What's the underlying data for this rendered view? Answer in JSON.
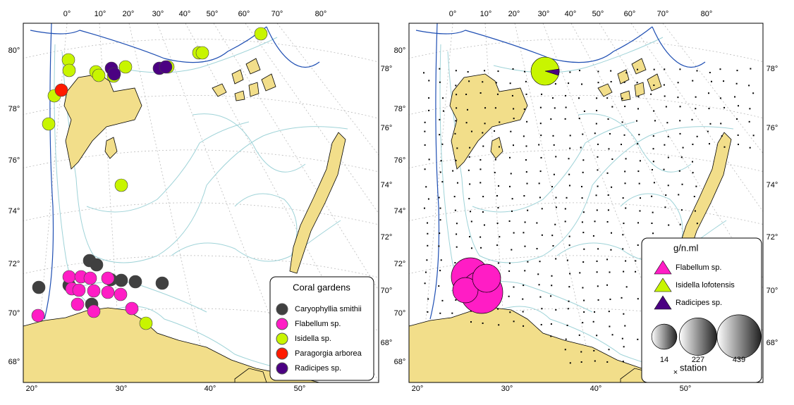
{
  "left_panel": {
    "top_labels": [
      "0°",
      "10°",
      "20°",
      "30°",
      "40°",
      "50°",
      "60°",
      "70°",
      "80°"
    ],
    "left_labels": [
      "80°",
      "78°",
      "76°",
      "74°",
      "72°",
      "70°",
      "68°"
    ],
    "right_labels": [
      "78°",
      "76°",
      "74°",
      "72°",
      "70°",
      "68°"
    ],
    "bottom_labels": [
      "20°",
      "30°",
      "40°",
      "50°"
    ],
    "legend": {
      "title": "Coral gardens",
      "items": [
        {
          "name": "Caryophyllia smithii",
          "color": "#404040"
        },
        {
          "name": "Flabellum sp.",
          "color": "#ff1dc5"
        },
        {
          "name": "Isidella sp.",
          "color": "#c8f500"
        },
        {
          "name": "Paragorgia arborea",
          "color": "#ff1a00"
        },
        {
          "name": "Radicipes sp.",
          "color": "#4b0082"
        }
      ]
    }
  },
  "right_panel": {
    "top_labels": [
      "0°",
      "10°",
      "20°",
      "30°",
      "40°",
      "50°",
      "60°",
      "70°",
      "80°"
    ],
    "left_labels": [
      "80°",
      "78°",
      "76°",
      "74°",
      "72°",
      "70°",
      "68°"
    ],
    "right_labels": [
      "78°",
      "76°",
      "74°",
      "72°",
      "70°",
      "68°"
    ],
    "bottom_labels": [
      "20°",
      "30°",
      "40°",
      "50°"
    ],
    "legend": {
      "title": "g/n.ml",
      "items": [
        {
          "name": "Flabellum sp.",
          "color": "#ff1dc5"
        },
        {
          "name": "Isidella lofotensis",
          "color": "#c8f500"
        },
        {
          "name": "Radicipes sp.",
          "color": "#4b0082"
        }
      ],
      "sizes": [
        14,
        227,
        439
      ],
      "station_label": "station"
    }
  }
}
